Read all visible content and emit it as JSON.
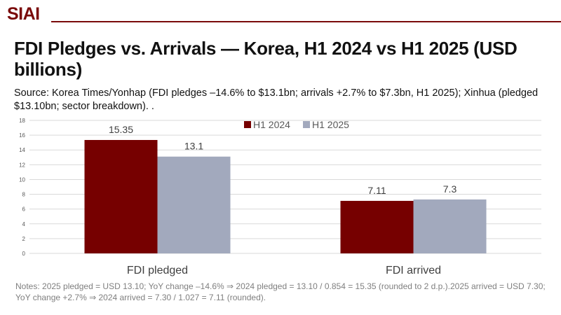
{
  "brand": {
    "logo_text": "SIAI",
    "color": "#7a0a0a"
  },
  "title": "FDI Pledges vs. Arrivals — Korea, H1 2024 vs H1 2025 (USD billions)",
  "source": "Source: Korea Times/Yonhap (FDI pledges –14.6% to $13.1bn; arrivals +2.7% to $7.3bn, H1 2025); Xinhua (pledged $13.10bn; sector breakdown). .",
  "notes": "Notes: 2025 pledged = USD 13.10; YoY change –14.6% ⇒ 2024 pledged = 13.10 / 0.854 = 15.35 (rounded to 2 d.p.).2025 arrived = USD 7.30; YoY change +2.7% ⇒ 2024 arrived = 7.30 / 1.027 = 7.11 (rounded).",
  "chart_data": {
    "type": "bar",
    "categories": [
      "FDI pledged",
      "FDI arrived"
    ],
    "series": [
      {
        "name": "H1 2024",
        "values": [
          15.35,
          7.11
        ],
        "labels": [
          "15.35",
          "7.11"
        ],
        "color": "#760000"
      },
      {
        "name": "H1 2025",
        "values": [
          13.1,
          7.3
        ],
        "labels": [
          "13.1",
          "7.3"
        ],
        "color": "#a2a9bd"
      }
    ],
    "ylim": [
      0,
      18
    ],
    "yticks": [
      0,
      2,
      4,
      6,
      8,
      10,
      12,
      14,
      16,
      18
    ],
    "grid": true,
    "legend": "top-center",
    "xlabel": "",
    "ylabel": ""
  }
}
